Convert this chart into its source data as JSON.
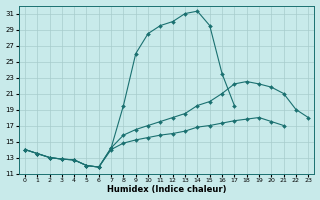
{
  "xlabel": "Humidex (Indice chaleur)",
  "background_color": "#c8eaea",
  "grid_color": "#a8cccc",
  "line_color": "#1a7070",
  "xlim": [
    -0.5,
    23.5
  ],
  "ylim": [
    11,
    32
  ],
  "yticks": [
    11,
    13,
    15,
    17,
    19,
    21,
    23,
    25,
    27,
    29,
    31
  ],
  "xticks": [
    0,
    1,
    2,
    3,
    4,
    5,
    6,
    7,
    8,
    9,
    10,
    11,
    12,
    13,
    14,
    15,
    16,
    17,
    18,
    19,
    20,
    21,
    22,
    23
  ],
  "line1_x": [
    0,
    1,
    2,
    3,
    4,
    5,
    6,
    7,
    8,
    9,
    10,
    11,
    12,
    13,
    14,
    15,
    16,
    17,
    18,
    19,
    20,
    21
  ],
  "line1_y": [
    14,
    13.5,
    13.0,
    12.8,
    12.7,
    12.0,
    11.8,
    14.2,
    19.5,
    26.0,
    28.5,
    29.5,
    30.0,
    31.0,
    31.3,
    29.5,
    23.5,
    19.5,
    null,
    null,
    null,
    null
  ],
  "line2_x": [
    0,
    1,
    2,
    3,
    4,
    5,
    6,
    7,
    8,
    9,
    10,
    11,
    12,
    13,
    14,
    15,
    16,
    17,
    18,
    19,
    20,
    21,
    22,
    23
  ],
  "line2_y": [
    14,
    13.5,
    13.0,
    12.8,
    12.7,
    12.0,
    11.8,
    14.2,
    15.8,
    16.5,
    17.0,
    17.5,
    18.0,
    18.5,
    19.5,
    20.0,
    21.0,
    22.2,
    22.5,
    22.2,
    21.8,
    21.0,
    19.0,
    18.0
  ],
  "line3_x": [
    0,
    1,
    2,
    3,
    4,
    5,
    6,
    7,
    8,
    9,
    10,
    11,
    12,
    13,
    14,
    15,
    16,
    17,
    18,
    19,
    20,
    21,
    22,
    23
  ],
  "line3_y": [
    14,
    13.5,
    13.0,
    12.8,
    12.7,
    12.0,
    11.8,
    14.0,
    14.8,
    15.2,
    15.5,
    15.8,
    16.0,
    16.3,
    16.8,
    17.0,
    17.3,
    17.6,
    17.8,
    18.0,
    17.5,
    17.0,
    null,
    null
  ]
}
